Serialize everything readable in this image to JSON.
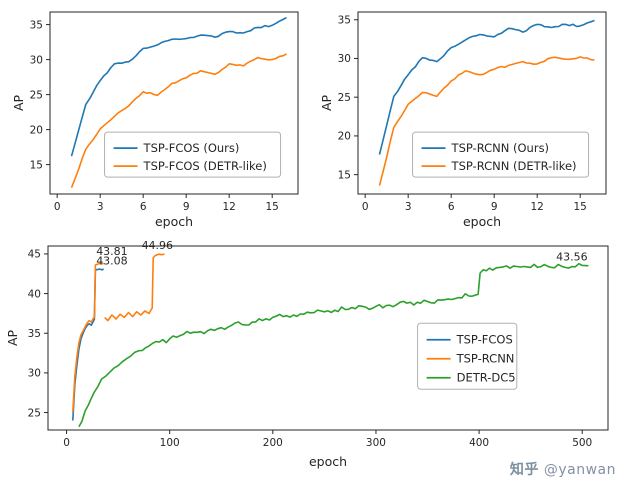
{
  "watermark": {
    "zhihu": "知乎",
    "handle": " @yanwan"
  },
  "colors": {
    "blue": "#1f77b4",
    "orange": "#ff7f0e",
    "green": "#2ca02c",
    "text": "#262626",
    "spine": "#333333",
    "legend_border": "#b0b0b0"
  },
  "chart_data": [
    {
      "type": "line",
      "title": "",
      "xlabel": "epoch",
      "ylabel": "AP",
      "xlim": [
        -0.5,
        16.8
      ],
      "ylim": [
        10.8,
        36.8
      ],
      "xticks": [
        0,
        3,
        6,
        9,
        12,
        15
      ],
      "yticks": [
        15,
        20,
        25,
        30,
        35
      ],
      "legend": {
        "fx": 0.22,
        "fy": 0.66
      },
      "series": [
        {
          "name": "TSP-FCOS (Ours)",
          "color": "#1f77b4",
          "jitter": 0.12,
          "x": [
            1,
            2,
            3,
            4,
            5,
            6,
            7,
            8,
            9,
            10,
            11,
            12,
            13,
            14,
            15,
            16
          ],
          "y": [
            16.2,
            23.6,
            27.0,
            29.4,
            29.7,
            31.6,
            32.1,
            32.9,
            33.0,
            33.5,
            33.2,
            34.0,
            33.8,
            34.6,
            34.9,
            36.0
          ]
        },
        {
          "name": "TSP-FCOS (DETR-like)",
          "color": "#ff7f0e",
          "jitter": 0.12,
          "x": [
            1,
            2,
            3,
            4,
            5,
            6,
            7,
            8,
            9,
            10,
            11,
            12,
            13,
            14,
            15,
            16
          ],
          "y": [
            11.7,
            17.2,
            20.1,
            21.9,
            23.4,
            25.4,
            24.9,
            26.6,
            27.4,
            28.4,
            27.9,
            29.4,
            29.1,
            30.3,
            30.0,
            30.8
          ]
        }
      ],
      "annotations": []
    },
    {
      "type": "line",
      "title": "",
      "xlabel": "epoch",
      "ylabel": "AP",
      "xlim": [
        -0.5,
        16.8
      ],
      "ylim": [
        12.5,
        36.0
      ],
      "xticks": [
        0,
        3,
        6,
        9,
        12,
        15
      ],
      "yticks": [
        15,
        20,
        25,
        30,
        35
      ],
      "legend": {
        "fx": 0.22,
        "fy": 0.66
      },
      "series": [
        {
          "name": "TSP-RCNN (Ours)",
          "color": "#1f77b4",
          "jitter": 0.12,
          "x": [
            1,
            2,
            3,
            4,
            5,
            6,
            7,
            8,
            9,
            10,
            11,
            12,
            13,
            14,
            15,
            16
          ],
          "y": [
            17.6,
            25.1,
            27.9,
            30.1,
            29.6,
            31.4,
            32.4,
            33.1,
            32.8,
            33.9,
            33.4,
            34.4,
            34.0,
            34.4,
            34.2,
            34.9
          ]
        },
        {
          "name": "TSP-RCNN (DETR-like)",
          "color": "#ff7f0e",
          "jitter": 0.12,
          "x": [
            1,
            2,
            3,
            4,
            5,
            6,
            7,
            8,
            9,
            10,
            11,
            12,
            13,
            14,
            15,
            16
          ],
          "y": [
            13.6,
            21.1,
            24.1,
            25.6,
            25.1,
            27.1,
            28.4,
            27.9,
            28.6,
            29.1,
            29.6,
            29.3,
            30.1,
            29.9,
            30.2,
            29.8
          ]
        }
      ],
      "annotations": []
    },
    {
      "type": "line",
      "title": "",
      "xlabel": "epoch",
      "ylabel": "AP",
      "xlim": [
        -18,
        525
      ],
      "ylim": [
        22.8,
        46.0
      ],
      "xticks": [
        0,
        100,
        200,
        300,
        400,
        500
      ],
      "yticks": [
        25,
        30,
        35,
        40,
        45
      ],
      "legend": {
        "fx": 0.66,
        "fy": 0.42
      },
      "series": [
        {
          "name": "TSP-FCOS",
          "color": "#1f77b4",
          "jitter": 0.15,
          "x": [
            6,
            8,
            10,
            12,
            14,
            16,
            18,
            20,
            22,
            24,
            26,
            27,
            28,
            30,
            32,
            34,
            36
          ],
          "y": [
            24.0,
            28.5,
            31.0,
            33.0,
            34.3,
            35.0,
            35.6,
            36.0,
            36.2,
            36.0,
            36.5,
            36.8,
            43.0,
            43.02,
            43.1,
            43.0,
            43.08
          ]
        },
        {
          "name": "TSP-RCNN",
          "color": "#ff7f0e",
          "jitter": 0.3,
          "x": [
            6,
            8,
            10,
            12,
            14,
            16,
            18,
            20,
            22,
            24,
            26,
            27,
            28,
            30,
            32,
            34,
            36,
            null,
            37,
            40,
            44,
            48,
            52,
            56,
            60,
            64,
            68,
            72,
            76,
            80,
            83,
            84,
            86,
            88,
            90,
            92,
            95
          ],
          "y": [
            25.0,
            29.5,
            32.0,
            33.8,
            34.8,
            35.3,
            35.8,
            36.3,
            36.6,
            36.4,
            36.9,
            37.0,
            43.6,
            43.7,
            43.8,
            43.75,
            43.81,
            null,
            37.0,
            36.6,
            37.3,
            36.8,
            37.4,
            37.0,
            37.6,
            37.1,
            37.7,
            37.3,
            37.8,
            37.5,
            38.2,
            44.5,
            44.8,
            44.9,
            44.96,
            44.9,
            44.96
          ]
        },
        {
          "name": "DETR-DC5",
          "color": "#2ca02c",
          "jitter": 0.35,
          "x": [
            12,
            18,
            24,
            30,
            38,
            46,
            54,
            62,
            70,
            80,
            90,
            100,
            110,
            120,
            130,
            140,
            150,
            160,
            170,
            180,
            190,
            200,
            210,
            220,
            230,
            240,
            250,
            260,
            270,
            280,
            290,
            300,
            310,
            320,
            330,
            340,
            350,
            360,
            370,
            380,
            390,
            396,
            399,
            401,
            404,
            410,
            420,
            430,
            440,
            450,
            460,
            470,
            480,
            490,
            500,
            506
          ],
          "y": [
            23.2,
            25.2,
            26.8,
            28.2,
            29.6,
            30.6,
            31.4,
            32.1,
            32.8,
            33.4,
            33.9,
            34.3,
            34.7,
            35.0,
            35.2,
            35.5,
            35.7,
            36.0,
            36.1,
            36.4,
            36.6,
            37.0,
            37.1,
            37.3,
            37.4,
            37.6,
            37.7,
            37.9,
            38.0,
            38.1,
            38.3,
            38.4,
            38.5,
            38.6,
            38.8,
            38.9,
            39.0,
            39.2,
            39.3,
            39.5,
            39.7,
            39.8,
            39.9,
            42.6,
            43.0,
            43.2,
            43.3,
            43.2,
            43.35,
            43.3,
            43.4,
            43.3,
            43.45,
            43.4,
            43.56,
            43.5
          ]
        }
      ],
      "annotations": [
        {
          "text": "43.81",
          "x": 44,
          "y": 44.85
        },
        {
          "text": "43.08",
          "x": 44,
          "y": 43.65
        },
        {
          "text": "44.96",
          "x": 88,
          "y": 45.65
        },
        {
          "text": "43.56",
          "x": 490,
          "y": 44.15
        }
      ]
    }
  ]
}
